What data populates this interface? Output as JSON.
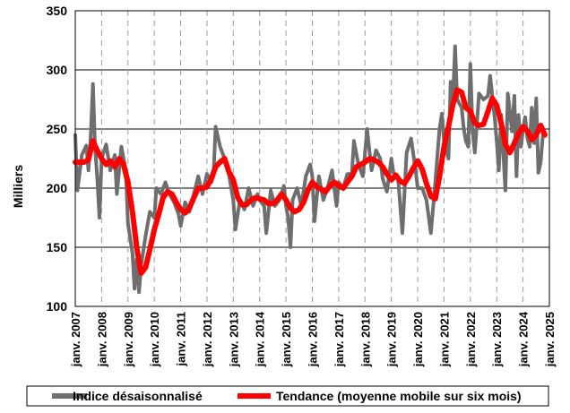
{
  "chart_data": {
    "type": "line",
    "ylabel": "Milliers",
    "ylim": [
      100,
      350
    ],
    "y_ticks": [
      100,
      150,
      200,
      250,
      300,
      350
    ],
    "x_range": [
      2007,
      2025
    ],
    "x_tick_labels": [
      "janv. 2007",
      "janv. 2008",
      "janv. 2009",
      "janv. 2010",
      "janv. 2011",
      "janv. 2012",
      "janv. 2013",
      "janv. 2014",
      "janv. 2015",
      "janv. 2016",
      "janv. 2017",
      "janv. 2018",
      "janv. 2019",
      "janv. 2020",
      "janv. 2021",
      "janv. 2022",
      "janv. 2023",
      "janv. 2024",
      "janv. 2025"
    ],
    "grid": {
      "horizontal": "solid",
      "vertical": "dashed"
    },
    "legend_position": "bottom",
    "series": [
      {
        "name": "Indice désaisonnalisé",
        "color": "#6e6e6e",
        "points": [
          [
            2007.0,
            245
          ],
          [
            2007.08,
            198
          ],
          [
            2007.25,
            228
          ],
          [
            2007.42,
            236
          ],
          [
            2007.5,
            215
          ],
          [
            2007.58,
            240
          ],
          [
            2007.67,
            288
          ],
          [
            2007.75,
            235
          ],
          [
            2007.83,
            210
          ],
          [
            2007.92,
            175
          ],
          [
            2008.0,
            225
          ],
          [
            2008.17,
            237
          ],
          [
            2008.33,
            215
          ],
          [
            2008.5,
            228
          ],
          [
            2008.58,
            195
          ],
          [
            2008.75,
            235
          ],
          [
            2008.92,
            215
          ],
          [
            2009.0,
            170
          ],
          [
            2009.17,
            145
          ],
          [
            2009.25,
            115
          ],
          [
            2009.33,
            140
          ],
          [
            2009.42,
            112
          ],
          [
            2009.5,
            135
          ],
          [
            2009.67,
            160
          ],
          [
            2009.83,
            180
          ],
          [
            2010.0,
            175
          ],
          [
            2010.08,
            200
          ],
          [
            2010.25,
            195
          ],
          [
            2010.42,
            205
          ],
          [
            2010.58,
            195
          ],
          [
            2010.75,
            188
          ],
          [
            2010.92,
            178
          ],
          [
            2011.0,
            168
          ],
          [
            2011.17,
            188
          ],
          [
            2011.33,
            180
          ],
          [
            2011.5,
            195
          ],
          [
            2011.67,
            210
          ],
          [
            2011.83,
            195
          ],
          [
            2012.0,
            212
          ],
          [
            2012.17,
            205
          ],
          [
            2012.25,
            212
          ],
          [
            2012.33,
            252
          ],
          [
            2012.5,
            235
          ],
          [
            2012.67,
            225
          ],
          [
            2012.83,
            212
          ],
          [
            2013.0,
            190
          ],
          [
            2013.08,
            165
          ],
          [
            2013.25,
            190
          ],
          [
            2013.42,
            182
          ],
          [
            2013.58,
            200
          ],
          [
            2013.75,
            185
          ],
          [
            2013.92,
            195
          ],
          [
            2014.0,
            190
          ],
          [
            2014.17,
            185
          ],
          [
            2014.25,
            162
          ],
          [
            2014.42,
            198
          ],
          [
            2014.58,
            185
          ],
          [
            2014.75,
            190
          ],
          [
            2014.92,
            202
          ],
          [
            2015.0,
            185
          ],
          [
            2015.08,
            175
          ],
          [
            2015.17,
            150
          ],
          [
            2015.25,
            190
          ],
          [
            2015.42,
            200
          ],
          [
            2015.58,
            185
          ],
          [
            2015.75,
            210
          ],
          [
            2015.92,
            220
          ],
          [
            2016.0,
            210
          ],
          [
            2016.08,
            172
          ],
          [
            2016.25,
            210
          ],
          [
            2016.42,
            190
          ],
          [
            2016.58,
            200
          ],
          [
            2016.75,
            215
          ],
          [
            2016.92,
            185
          ],
          [
            2017.0,
            205
          ],
          [
            2017.17,
            200
          ],
          [
            2017.33,
            212
          ],
          [
            2017.5,
            212
          ],
          [
            2017.58,
            240
          ],
          [
            2017.75,
            220
          ],
          [
            2017.92,
            210
          ],
          [
            2018.0,
            230
          ],
          [
            2018.08,
            250
          ],
          [
            2018.25,
            215
          ],
          [
            2018.42,
            232
          ],
          [
            2018.58,
            225
          ],
          [
            2018.67,
            208
          ],
          [
            2018.83,
            197
          ],
          [
            2019.0,
            225
          ],
          [
            2019.08,
            213
          ],
          [
            2019.25,
            210
          ],
          [
            2019.42,
            162
          ],
          [
            2019.58,
            230
          ],
          [
            2019.75,
            242
          ],
          [
            2019.92,
            215
          ],
          [
            2020.0,
            200
          ],
          [
            2020.17,
            200
          ],
          [
            2020.33,
            190
          ],
          [
            2020.5,
            162
          ],
          [
            2020.67,
            205
          ],
          [
            2020.83,
            250
          ],
          [
            2020.92,
            263
          ],
          [
            2021.0,
            240
          ],
          [
            2021.17,
            225
          ],
          [
            2021.25,
            290
          ],
          [
            2021.33,
            270
          ],
          [
            2021.42,
            320
          ],
          [
            2021.5,
            275
          ],
          [
            2021.67,
            268
          ],
          [
            2021.75,
            250
          ],
          [
            2021.83,
            240
          ],
          [
            2021.92,
            235
          ],
          [
            2022.0,
            305
          ],
          [
            2022.08,
            250
          ],
          [
            2022.17,
            230
          ],
          [
            2022.33,
            280
          ],
          [
            2022.5,
            275
          ],
          [
            2022.67,
            278
          ],
          [
            2022.75,
            295
          ],
          [
            2022.92,
            260
          ],
          [
            2023.0,
            240
          ],
          [
            2023.08,
            215
          ],
          [
            2023.17,
            262
          ],
          [
            2023.33,
            198
          ],
          [
            2023.42,
            280
          ],
          [
            2023.58,
            248
          ],
          [
            2023.67,
            278
          ],
          [
            2023.75,
            210
          ],
          [
            2023.83,
            262
          ],
          [
            2023.92,
            235
          ],
          [
            2024.0,
            250
          ],
          [
            2024.08,
            260
          ],
          [
            2024.17,
            242
          ],
          [
            2024.25,
            235
          ],
          [
            2024.33,
            268
          ],
          [
            2024.42,
            238
          ],
          [
            2024.5,
            276
          ],
          [
            2024.58,
            213
          ],
          [
            2024.67,
            222
          ],
          [
            2024.75,
            245
          ],
          [
            2024.83,
            247
          ]
        ]
      },
      {
        "name": "Tendance (moyenne mobile sur six mois)",
        "color": "#ff0000",
        "points": [
          [
            2007.0,
            222
          ],
          [
            2007.17,
            222
          ],
          [
            2007.33,
            222
          ],
          [
            2007.5,
            224
          ],
          [
            2007.67,
            240
          ],
          [
            2007.83,
            232
          ],
          [
            2008.0,
            225
          ],
          [
            2008.17,
            220
          ],
          [
            2008.33,
            223
          ],
          [
            2008.5,
            218
          ],
          [
            2008.67,
            225
          ],
          [
            2008.83,
            220
          ],
          [
            2009.0,
            205
          ],
          [
            2009.17,
            180
          ],
          [
            2009.33,
            150
          ],
          [
            2009.5,
            128
          ],
          [
            2009.67,
            133
          ],
          [
            2009.83,
            148
          ],
          [
            2010.0,
            165
          ],
          [
            2010.17,
            178
          ],
          [
            2010.33,
            192
          ],
          [
            2010.5,
            197
          ],
          [
            2010.67,
            195
          ],
          [
            2010.83,
            188
          ],
          [
            2011.0,
            182
          ],
          [
            2011.17,
            179
          ],
          [
            2011.33,
            183
          ],
          [
            2011.5,
            192
          ],
          [
            2011.67,
            200
          ],
          [
            2011.83,
            200
          ],
          [
            2012.0,
            201
          ],
          [
            2012.17,
            208
          ],
          [
            2012.33,
            218
          ],
          [
            2012.5,
            222
          ],
          [
            2012.67,
            225
          ],
          [
            2012.83,
            214
          ],
          [
            2013.0,
            207
          ],
          [
            2013.17,
            192
          ],
          [
            2013.33,
            186
          ],
          [
            2013.5,
            186
          ],
          [
            2013.67,
            190
          ],
          [
            2013.83,
            192
          ],
          [
            2014.0,
            191
          ],
          [
            2014.17,
            190
          ],
          [
            2014.33,
            187
          ],
          [
            2014.5,
            187
          ],
          [
            2014.67,
            190
          ],
          [
            2014.83,
            195
          ],
          [
            2015.0,
            190
          ],
          [
            2015.17,
            183
          ],
          [
            2015.33,
            180
          ],
          [
            2015.5,
            182
          ],
          [
            2015.67,
            188
          ],
          [
            2015.83,
            198
          ],
          [
            2016.0,
            205
          ],
          [
            2016.17,
            201
          ],
          [
            2016.33,
            199
          ],
          [
            2016.5,
            197
          ],
          [
            2016.67,
            202
          ],
          [
            2016.83,
            205
          ],
          [
            2017.0,
            202
          ],
          [
            2017.17,
            200
          ],
          [
            2017.33,
            205
          ],
          [
            2017.5,
            210
          ],
          [
            2017.67,
            218
          ],
          [
            2017.83,
            220
          ],
          [
            2018.0,
            222
          ],
          [
            2018.17,
            225
          ],
          [
            2018.33,
            224
          ],
          [
            2018.5,
            222
          ],
          [
            2018.67,
            218
          ],
          [
            2018.83,
            212
          ],
          [
            2019.0,
            207
          ],
          [
            2019.17,
            211
          ],
          [
            2019.33,
            206
          ],
          [
            2019.5,
            204
          ],
          [
            2019.67,
            210
          ],
          [
            2019.83,
            217
          ],
          [
            2020.0,
            223
          ],
          [
            2020.17,
            216
          ],
          [
            2020.33,
            204
          ],
          [
            2020.5,
            193
          ],
          [
            2020.67,
            191
          ],
          [
            2020.83,
            210
          ],
          [
            2021.0,
            235
          ],
          [
            2021.17,
            252
          ],
          [
            2021.33,
            270
          ],
          [
            2021.5,
            283
          ],
          [
            2021.67,
            281
          ],
          [
            2021.83,
            268
          ],
          [
            2022.0,
            265
          ],
          [
            2022.17,
            255
          ],
          [
            2022.33,
            253
          ],
          [
            2022.5,
            254
          ],
          [
            2022.67,
            265
          ],
          [
            2022.83,
            276
          ],
          [
            2023.0,
            270
          ],
          [
            2023.17,
            255
          ],
          [
            2023.33,
            237
          ],
          [
            2023.5,
            230
          ],
          [
            2023.67,
            238
          ],
          [
            2023.83,
            246
          ],
          [
            2024.0,
            252
          ],
          [
            2024.17,
            248
          ],
          [
            2024.33,
            241
          ],
          [
            2024.5,
            245
          ],
          [
            2024.67,
            253
          ],
          [
            2024.83,
            245
          ]
        ]
      }
    ]
  }
}
